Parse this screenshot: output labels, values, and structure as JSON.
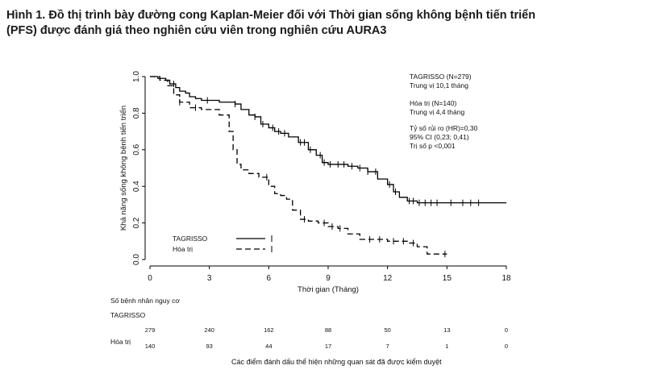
{
  "title": {
    "line1": "Hình 1. Đồ thị trình bày đường cong Kaplan-Meier đối với Thời gian sống không bệnh tiến triển",
    "line2": "(PFS) được đánh giá theo nghiên cứu viên trong nghiên cứu AURA3"
  },
  "chart_data": {
    "type": "line",
    "subtype": "kaplan-meier-step",
    "xlabel": "Thời gian (Tháng)",
    "ylabel": "Khả năng sống không bệnh tiến triển",
    "xlim": [
      0,
      18
    ],
    "ylim": [
      0,
      1.0
    ],
    "xticks": [
      "0",
      "3",
      "6",
      "9",
      "12",
      "15",
      "18"
    ],
    "yticks": [
      "0.0",
      "0.2",
      "0.4",
      "0.6",
      "0.8",
      "1.0"
    ],
    "series": [
      {
        "name": "TAGRISSO",
        "style": "solid",
        "color": "#000000",
        "x": [
          0,
          0.4,
          0.8,
          1.0,
          1.3,
          1.5,
          1.8,
          2.0,
          2.3,
          2.6,
          3.0,
          3.5,
          4.0,
          4.3,
          4.6,
          5.0,
          5.3,
          5.6,
          6.0,
          6.3,
          6.6,
          7.0,
          7.5,
          8.0,
          8.4,
          8.7,
          9.0,
          9.5,
          10.0,
          10.5,
          11.0,
          11.5,
          12.0,
          12.3,
          12.6,
          13.0,
          13.5,
          14.0,
          15.0,
          16.0,
          17.0,
          18.0
        ],
        "y": [
          1.0,
          0.99,
          0.98,
          0.96,
          0.94,
          0.92,
          0.91,
          0.89,
          0.88,
          0.87,
          0.87,
          0.86,
          0.86,
          0.85,
          0.82,
          0.79,
          0.78,
          0.74,
          0.72,
          0.7,
          0.69,
          0.67,
          0.64,
          0.6,
          0.57,
          0.53,
          0.52,
          0.52,
          0.51,
          0.5,
          0.48,
          0.44,
          0.41,
          0.37,
          0.34,
          0.32,
          0.31,
          0.31,
          0.31,
          0.31,
          0.31,
          0.31
        ],
        "censor_x": [
          1.2,
          2.9,
          4.3,
          5.3,
          5.7,
          6.2,
          6.5,
          6.8,
          7.6,
          7.8,
          8.1,
          8.6,
          8.8,
          9.1,
          9.5,
          9.8,
          10.2,
          10.6,
          11.0,
          11.4,
          12.1,
          12.4,
          13.1,
          13.3,
          13.6,
          13.9,
          14.2,
          14.5,
          15.2,
          15.8,
          16.2,
          16.6
        ]
      },
      {
        "name": "Hóa trị",
        "style": "dashed",
        "color": "#000000",
        "x": [
          0,
          0.5,
          0.9,
          1.2,
          1.5,
          2.0,
          2.6,
          3.0,
          3.5,
          4.0,
          4.2,
          4.4,
          4.6,
          5.0,
          5.5,
          6.0,
          6.3,
          6.6,
          6.9,
          7.2,
          7.6,
          8.0,
          8.5,
          9.0,
          9.5,
          9.8,
          10.0,
          10.6,
          11.0,
          12.0,
          13.0,
          13.5,
          14.0,
          15.0
        ],
        "y": [
          1.0,
          0.98,
          0.95,
          0.9,
          0.86,
          0.83,
          0.82,
          0.82,
          0.79,
          0.7,
          0.6,
          0.52,
          0.49,
          0.47,
          0.45,
          0.4,
          0.36,
          0.35,
          0.33,
          0.27,
          0.22,
          0.21,
          0.2,
          0.18,
          0.17,
          0.17,
          0.14,
          0.11,
          0.11,
          0.1,
          0.09,
          0.07,
          0.03,
          0.03
        ],
        "censor_x": [
          1.5,
          2.3,
          5.9,
          7.8,
          8.8,
          9.2,
          9.6,
          11.1,
          11.6,
          12.3,
          12.8,
          13.3,
          14.9
        ]
      }
    ],
    "legend": {
      "placement": "bottom-left",
      "entries": [
        "TAGRISSO",
        "Hóa trị"
      ]
    },
    "annotations": [
      "TAGRISSO (N=279)",
      "Trung vị 10,1 tháng",
      "Hóa trị (N=140)",
      "Trung vị 4,4 tháng",
      "Tỷ số rủi ro (HR)=0,30",
      "95% CI (0,23; 0,41)",
      "Trị số p <0,001"
    ]
  },
  "risk_table": {
    "heading": "Số bệnh nhân nguy cơ",
    "rows": [
      {
        "label": "TAGRISSO",
        "values": [
          "279",
          "240",
          "162",
          "88",
          "50",
          "13",
          "0"
        ]
      },
      {
        "label": "Hóa trị",
        "values": [
          "140",
          "93",
          "44",
          "17",
          "7",
          "1",
          "0"
        ]
      }
    ]
  },
  "footnote": "Các điểm đánh dấu thể hiện những quan sát đã được kiểm duyệt"
}
